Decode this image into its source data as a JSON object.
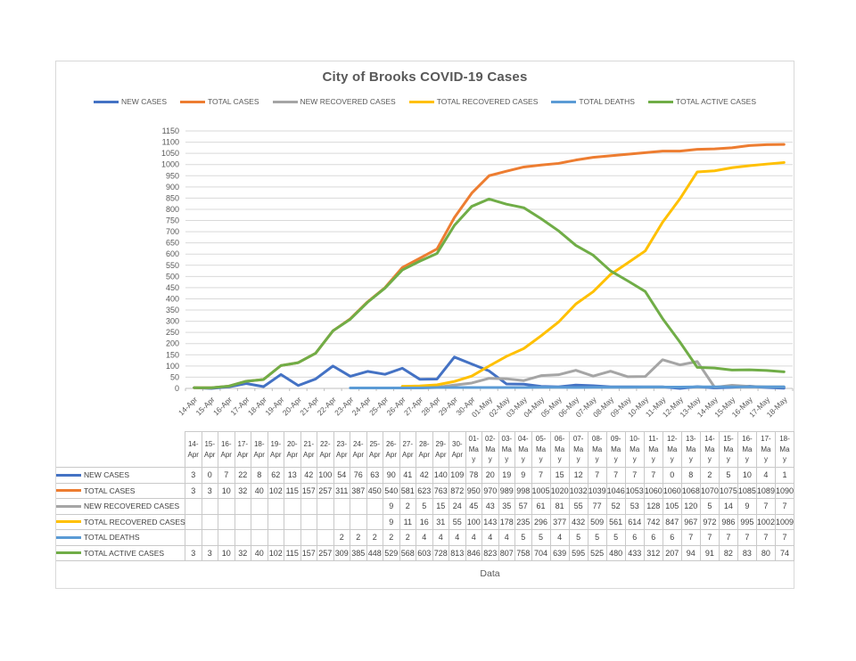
{
  "chart_data": {
    "type": "line",
    "title": "City of Brooks COVID-19 Cases",
    "xlabel": "Data",
    "ylabel": "",
    "ylim": [
      0,
      1150
    ],
    "ytick_step": 50,
    "grid": true,
    "legend_position": "top",
    "categories": [
      "14-Apr",
      "15-Apr",
      "16-Apr",
      "17-Apr",
      "18-Apr",
      "19-Apr",
      "20-Apr",
      "21-Apr",
      "22-Apr",
      "23-Apr",
      "24-Apr",
      "25-Apr",
      "26-Apr",
      "27-Apr",
      "28-Apr",
      "29-Apr",
      "30-Apr",
      "01-May",
      "02-May",
      "03-May",
      "04-May",
      "05-May",
      "06-May",
      "07-May",
      "08-May",
      "09-May",
      "10-May",
      "11-May",
      "12-May",
      "13-May",
      "14-May",
      "15-May",
      "16-May",
      "17-May",
      "18-May"
    ],
    "series": [
      {
        "name": "NEW CASES",
        "color": "#4472C4",
        "values": [
          3,
          0,
          7,
          22,
          8,
          62,
          13,
          42,
          100,
          54,
          76,
          63,
          90,
          41,
          42,
          140,
          109,
          78,
          20,
          19,
          9,
          7,
          15,
          12,
          7,
          7,
          7,
          7,
          0,
          8,
          2,
          5,
          10,
          4,
          1
        ]
      },
      {
        "name": "TOTAL CASES",
        "color": "#ED7D31",
        "values": [
          3,
          3,
          10,
          32,
          40,
          102,
          115,
          157,
          257,
          311,
          387,
          450,
          540,
          581,
          623,
          763,
          872,
          950,
          970,
          989,
          998,
          1005,
          1020,
          1032,
          1039,
          1046,
          1053,
          1060,
          1060,
          1068,
          1070,
          1075,
          1085,
          1089,
          1090
        ]
      },
      {
        "name": "NEW RECOVERED CASES",
        "color": "#A5A5A5",
        "values": [
          null,
          null,
          null,
          null,
          null,
          null,
          null,
          null,
          null,
          null,
          null,
          null,
          9,
          2,
          5,
          15,
          24,
          45,
          43,
          35,
          57,
          61,
          81,
          55,
          77,
          52,
          53,
          128,
          105,
          120,
          5,
          14,
          9,
          7,
          7
        ]
      },
      {
        "name": "TOTAL RECOVERED CASES",
        "color": "#FFC000",
        "values": [
          null,
          null,
          null,
          null,
          null,
          null,
          null,
          null,
          null,
          null,
          null,
          null,
          9,
          11,
          16,
          31,
          55,
          100,
          143,
          178,
          235,
          296,
          377,
          432,
          509,
          561,
          614,
          742,
          847,
          967,
          972,
          986,
          995,
          1002,
          1009
        ]
      },
      {
        "name": "TOTAL DEATHS",
        "color": "#5B9BD5",
        "values": [
          null,
          null,
          null,
          null,
          null,
          null,
          null,
          null,
          null,
          2,
          2,
          2,
          2,
          2,
          4,
          4,
          4,
          4,
          4,
          4,
          5,
          5,
          4,
          5,
          5,
          5,
          6,
          6,
          6,
          7,
          7,
          7,
          7,
          7,
          7
        ]
      },
      {
        "name": "TOTAL ACTIVE CASES",
        "color": "#70AD47",
        "values": [
          3,
          3,
          10,
          32,
          40,
          102,
          115,
          157,
          257,
          309,
          385,
          448,
          529,
          568,
          603,
          728,
          813,
          846,
          823,
          807,
          758,
          704,
          639,
          595,
          525,
          480,
          433,
          312,
          207,
          94,
          91,
          82,
          83,
          80,
          74
        ]
      }
    ]
  }
}
